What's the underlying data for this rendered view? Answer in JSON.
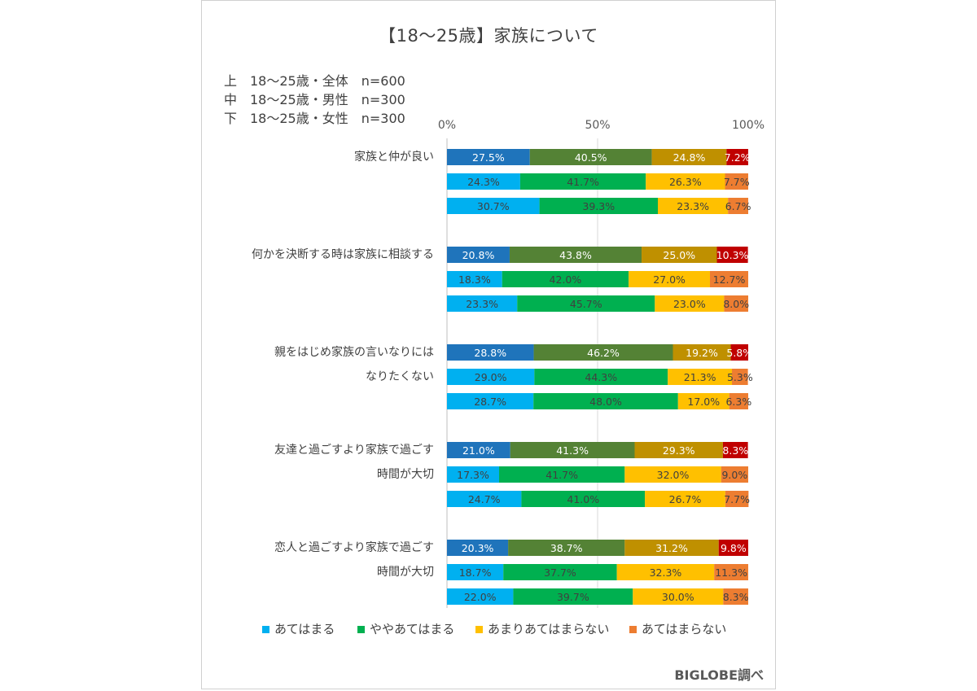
{
  "title": "【18～25歳】家族について",
  "notes": [
    "上　18～25歳・全体　n=600",
    "中　18～25歳・男性　n=300",
    "下　18～25歳・女性　n=300"
  ],
  "source": "BIGLOBE調べ",
  "colors": {
    "overall": [
      "#1f74bb",
      "#548235",
      "#bf9000",
      "#c00000"
    ],
    "gender": [
      "#00b0f0",
      "#00b050",
      "#ffc000",
      "#ed7d31"
    ],
    "axis": "#bfbfbf",
    "label_dark": "#ffffff",
    "label_light": "#404040"
  },
  "chart_data": {
    "type": "bar",
    "orientation": "horizontal",
    "stacked": "100%",
    "xlim": [
      0,
      100
    ],
    "x_ticks": [
      "0%",
      "50%",
      "100%"
    ],
    "x_tick_values": [
      0,
      50,
      100
    ],
    "grid": false,
    "legend_position": "bottom",
    "row_series": [
      "上",
      "中",
      "下"
    ],
    "legend": [
      "あてはまる",
      "ややあてはまる",
      "あまりあてはまらない",
      "あてはまらない"
    ],
    "categories": [
      {
        "label": [
          "家族と仲が良い"
        ],
        "rows": [
          [
            27.5,
            40.5,
            24.8,
            7.2
          ],
          [
            24.3,
            41.7,
            26.3,
            7.7
          ],
          [
            30.7,
            39.3,
            23.3,
            6.7
          ]
        ]
      },
      {
        "label": [
          "何かを決断する時は家族に相談する"
        ],
        "rows": [
          [
            20.8,
            43.8,
            25.0,
            10.3
          ],
          [
            18.3,
            42.0,
            27.0,
            12.7
          ],
          [
            23.3,
            45.7,
            23.0,
            8.0
          ]
        ]
      },
      {
        "label": [
          "親をはじめ家族の言いなりには",
          "なりたくない"
        ],
        "rows": [
          [
            28.8,
            46.2,
            19.2,
            5.8
          ],
          [
            29.0,
            44.3,
            21.3,
            5.3
          ],
          [
            28.7,
            48.0,
            17.0,
            6.3
          ]
        ]
      },
      {
        "label": [
          "友達と過ごすより家族で過ごす",
          "時間が大切"
        ],
        "rows": [
          [
            21.0,
            41.3,
            29.3,
            8.3
          ],
          [
            17.3,
            41.7,
            32.0,
            9.0
          ],
          [
            24.7,
            41.0,
            26.7,
            7.7
          ]
        ]
      },
      {
        "label": [
          "恋人と過ごすより家族で過ごす",
          "時間が大切"
        ],
        "rows": [
          [
            20.3,
            38.7,
            31.2,
            9.8
          ],
          [
            18.7,
            37.7,
            32.3,
            11.3
          ],
          [
            22.0,
            39.7,
            30.0,
            8.3
          ]
        ]
      }
    ]
  }
}
